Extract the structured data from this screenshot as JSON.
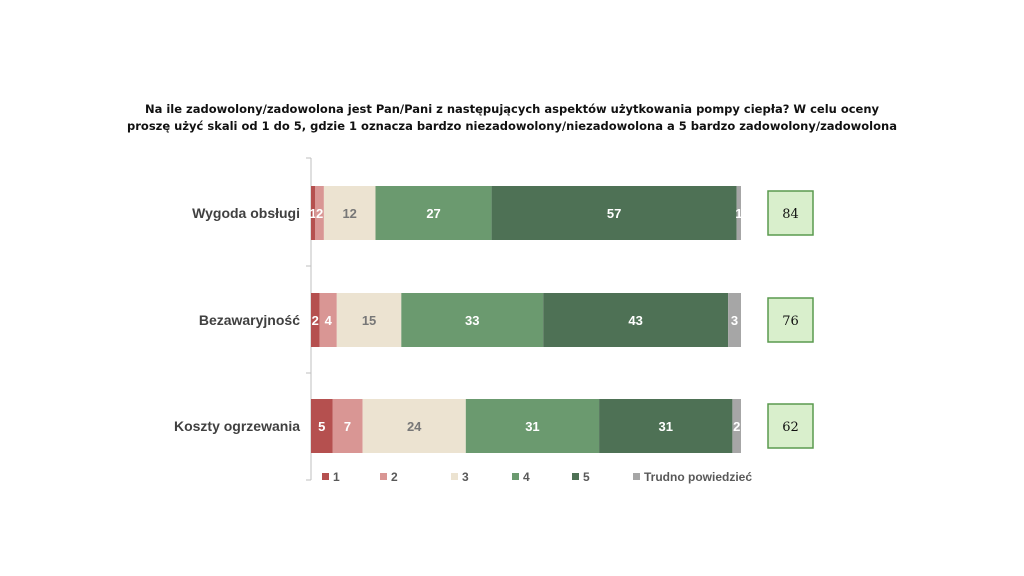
{
  "title_line1": "Na ile zadowolony/zadowolona jest Pan/Pani z następujących aspektów użytkowania pompy ciepła? W celu oceny",
  "title_line2": "proszę użyć skali od 1 do 5, gdzie 1 oznacza bardzo niezadowolony/niezadowolona a 5 bardzo zadowolony/zadowolona",
  "chart_data": {
    "type": "bar",
    "orientation": "horizontal",
    "stacked": true,
    "categories": [
      "Wygoda obsługi",
      "Bezawaryjność",
      "Koszty ogrzewania"
    ],
    "series": [
      {
        "name": "1",
        "values": [
          1,
          2,
          5
        ],
        "labels": [
          "1",
          "2",
          "5"
        ],
        "color": "#b5504f",
        "label_color": "#ffffff"
      },
      {
        "name": "2",
        "values": [
          2,
          4,
          7
        ],
        "labels": [
          "2",
          "4",
          "7"
        ],
        "color": "#d99694",
        "label_color": "#ffffff"
      },
      {
        "name": "3",
        "values": [
          12,
          15,
          24
        ],
        "labels": [
          "12",
          "15",
          "24"
        ],
        "color": "#ece3d1",
        "label_color": "#777777"
      },
      {
        "name": "4",
        "values": [
          27,
          33,
          31
        ],
        "labels": [
          "27",
          "33",
          "31"
        ],
        "color": "#6b9a6f",
        "label_color": "#ffffff"
      },
      {
        "name": "5",
        "values": [
          57,
          43,
          31
        ],
        "labels": [
          "57",
          "43",
          "31"
        ],
        "color": "#4e7155",
        "label_color": "#ffffff"
      },
      {
        "name": "Trudno powiedzieć",
        "values": [
          1,
          3,
          2
        ],
        "labels": [
          "1",
          "3",
          "2"
        ],
        "color": "#a6a6a6",
        "label_color": "#ffffff"
      }
    ],
    "summary_values": [
      "84",
      "76",
      "62"
    ],
    "summary_color": "#d9efcc",
    "summary_border": "#5a9a4e",
    "xlim": [
      0,
      100
    ],
    "legend_position": "bottom",
    "grid": false
  }
}
